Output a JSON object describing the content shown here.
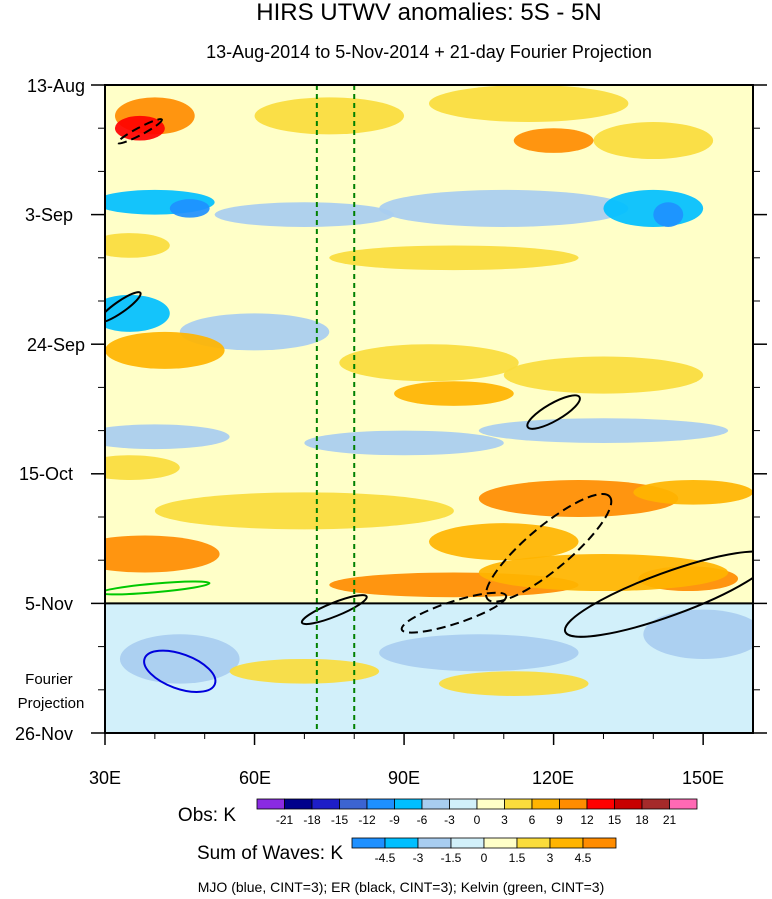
{
  "chart_data": {
    "type": "heatmap",
    "title": "HIRS UTWV anomalies: 5S - 5N",
    "subtitle": "13-Aug-2014 to 5-Nov-2014 + 21-day Fourier Projection",
    "xlabel": "",
    "ylabel": "",
    "x_range": [
      30,
      160
    ],
    "x_ticks": [
      30,
      60,
      90,
      120,
      150
    ],
    "x_tick_labels": [
      "30E",
      "60E",
      "90E",
      "120E",
      "150E"
    ],
    "y_tick_labels": [
      "13-Aug",
      "3-Sep",
      "24-Sep",
      "15-Oct",
      "5-Nov",
      "26-Nov"
    ],
    "y_tick_days": [
      0,
      21,
      42,
      63,
      84,
      105
    ],
    "days_total": 105,
    "observation_end_day": 84,
    "fourier_projection_label": "Fourier Projection",
    "reference_longitudes": [
      72.5,
      80
    ],
    "obs_colorbar": {
      "label": "Obs: K",
      "levels": [
        "-21",
        "-18",
        "-15",
        "-12",
        "-9",
        "-6",
        "-3",
        "0",
        "3",
        "6",
        "9",
        "12",
        "15",
        "18",
        "21"
      ],
      "colors": [
        "#8a2be2",
        "#00008b",
        "#1e1ec8",
        "#3c64d2",
        "#1e90ff",
        "#00bfff",
        "#a8cdf0",
        "#d2f0fa",
        "#ffffc8",
        "#fadc3c",
        "#ffb400",
        "#ff8c00",
        "#ff0000",
        "#c80000",
        "#a52a2a",
        "#ff69b4"
      ]
    },
    "waves_colorbar": {
      "label": "Sum of Waves: K",
      "levels": [
        "-4.5",
        "-3",
        "-1.5",
        "0",
        "1.5",
        "3",
        "4.5"
      ],
      "colors": [
        "#1e90ff",
        "#00bfff",
        "#a8cdf0",
        "#d2f0fa",
        "#ffffc8",
        "#fadc3c",
        "#ffb400",
        "#ff8c00"
      ]
    },
    "field_colors": {
      "background": "#ffffc8",
      "projection": "#d2f0fa"
    },
    "anomaly_patches": [
      {
        "lon": 40,
        "day": 5,
        "lon_w": 8,
        "day_w": 3,
        "level": 9
      },
      {
        "lon": 37,
        "day": 7,
        "lon_w": 5,
        "day_w": 2,
        "level": 12
      },
      {
        "lon": 120,
        "day": 9,
        "lon_w": 8,
        "day_w": 2,
        "level": 9
      },
      {
        "lon": 75,
        "day": 5,
        "lon_w": 15,
        "day_w": 3,
        "level": 3
      },
      {
        "lon": 115,
        "day": 3,
        "lon_w": 20,
        "day_w": 3,
        "level": 3
      },
      {
        "lon": 140,
        "day": 9,
        "lon_w": 12,
        "day_w": 3,
        "level": 3
      },
      {
        "lon": 40,
        "day": 19,
        "lon_w": 12,
        "day_w": 2,
        "level": -6
      },
      {
        "lon": 47,
        "day": 20,
        "lon_w": 4,
        "day_w": 1.5,
        "level": -9
      },
      {
        "lon": 70,
        "day": 21,
        "lon_w": 18,
        "day_w": 2,
        "level": -3
      },
      {
        "lon": 110,
        "day": 20,
        "lon_w": 25,
        "day_w": 3,
        "level": -3
      },
      {
        "lon": 140,
        "day": 20,
        "lon_w": 10,
        "day_w": 3,
        "level": -6
      },
      {
        "lon": 143,
        "day": 21,
        "lon_w": 3,
        "day_w": 2,
        "level": -9
      },
      {
        "lon": 35,
        "day": 26,
        "lon_w": 8,
        "day_w": 2,
        "level": 3
      },
      {
        "lon": 100,
        "day": 28,
        "lon_w": 25,
        "day_w": 2,
        "level": 3
      },
      {
        "lon": 35,
        "day": 37,
        "lon_w": 8,
        "day_w": 3,
        "level": -6
      },
      {
        "lon": 60,
        "day": 40,
        "lon_w": 15,
        "day_w": 3,
        "level": -3
      },
      {
        "lon": 42,
        "day": 43,
        "lon_w": 12,
        "day_w": 3,
        "level": 6
      },
      {
        "lon": 95,
        "day": 45,
        "lon_w": 18,
        "day_w": 3,
        "level": 3
      },
      {
        "lon": 100,
        "day": 50,
        "lon_w": 12,
        "day_w": 2,
        "level": 6
      },
      {
        "lon": 130,
        "day": 47,
        "lon_w": 20,
        "day_w": 3,
        "level": 3
      },
      {
        "lon": 40,
        "day": 57,
        "lon_w": 15,
        "day_w": 2,
        "level": -3
      },
      {
        "lon": 90,
        "day": 58,
        "lon_w": 20,
        "day_w": 2,
        "level": -3
      },
      {
        "lon": 130,
        "day": 56,
        "lon_w": 25,
        "day_w": 2,
        "level": -3
      },
      {
        "lon": 35,
        "day": 62,
        "lon_w": 10,
        "day_w": 2,
        "level": 3
      },
      {
        "lon": 125,
        "day": 67,
        "lon_w": 20,
        "day_w": 3,
        "level": 9
      },
      {
        "lon": 148,
        "day": 66,
        "lon_w": 12,
        "day_w": 2,
        "level": 6
      },
      {
        "lon": 110,
        "day": 74,
        "lon_w": 15,
        "day_w": 3,
        "level": 6
      },
      {
        "lon": 38,
        "day": 76,
        "lon_w": 15,
        "day_w": 3,
        "level": 9
      },
      {
        "lon": 70,
        "day": 69,
        "lon_w": 30,
        "day_w": 3,
        "level": 3
      },
      {
        "lon": 147,
        "day": 80,
        "lon_w": 10,
        "day_w": 2,
        "level": 9
      },
      {
        "lon": 100,
        "day": 81,
        "lon_w": 25,
        "day_w": 2,
        "level": 9
      },
      {
        "lon": 130,
        "day": 79,
        "lon_w": 25,
        "day_w": 3,
        "level": 6
      },
      {
        "lon": 45,
        "day": 93,
        "lon_w": 12,
        "day_w": 4,
        "level": -3
      },
      {
        "lon": 105,
        "day": 92,
        "lon_w": 20,
        "day_w": 3,
        "level": -1.5
      },
      {
        "lon": 150,
        "day": 89,
        "lon_w": 12,
        "day_w": 4,
        "level": -1.5
      },
      {
        "lon": 70,
        "day": 95,
        "lon_w": 15,
        "day_w": 2,
        "level": 1.5
      },
      {
        "lon": 112,
        "day": 97,
        "lon_w": 15,
        "day_w": 2,
        "level": 1.5
      }
    ],
    "contours": [
      {
        "wave": "ER",
        "sign": "negative",
        "color": "#000000",
        "lon": 37,
        "day": 7.5,
        "lon_w": 5,
        "day_w": 0.6,
        "angle": -28
      },
      {
        "wave": "ER",
        "sign": "positive",
        "color": "#000000",
        "lon": 33,
        "day": 36,
        "lon_w": 5,
        "day_w": 0.9,
        "angle": -35
      },
      {
        "wave": "ER",
        "sign": "positive",
        "color": "#000000",
        "lon": 120,
        "day": 53,
        "lon_w": 6,
        "day_w": 1.4,
        "angle": -30
      },
      {
        "wave": "ER",
        "sign": "negative",
        "color": "#000000",
        "lon": 119,
        "day": 75,
        "lon_w": 16,
        "day_w": 3.5,
        "angle": -40
      },
      {
        "wave": "ER",
        "sign": "positive",
        "color": "#000000",
        "lon": 143,
        "day": 82.5,
        "lon_w": 22,
        "day_w": 3.5,
        "angle": -20
      },
      {
        "wave": "ER",
        "sign": "positive",
        "color": "#000000",
        "lon": 76,
        "day": 85,
        "lon_w": 7,
        "day_w": 1.1,
        "angle": -22
      },
      {
        "wave": "ER",
        "sign": "negative",
        "color": "#000000",
        "lon": 100,
        "day": 85.5,
        "lon_w": 11,
        "day_w": 1.8,
        "angle": -18
      },
      {
        "wave": "Kelvin",
        "sign": "positive",
        "color": "#00c800",
        "lon": 40,
        "day": 81.5,
        "lon_w": 11,
        "day_w": 0.7,
        "angle": -5
      },
      {
        "wave": "MJO",
        "sign": "positive",
        "color": "#0000dc",
        "lon": 45,
        "day": 95,
        "lon_w": 7.5,
        "day_w": 2.8,
        "angle": 20
      }
    ],
    "footer": "MJO (blue, CINT=3); ER (black, CINT=3); Kelvin (green, CINT=3)"
  }
}
